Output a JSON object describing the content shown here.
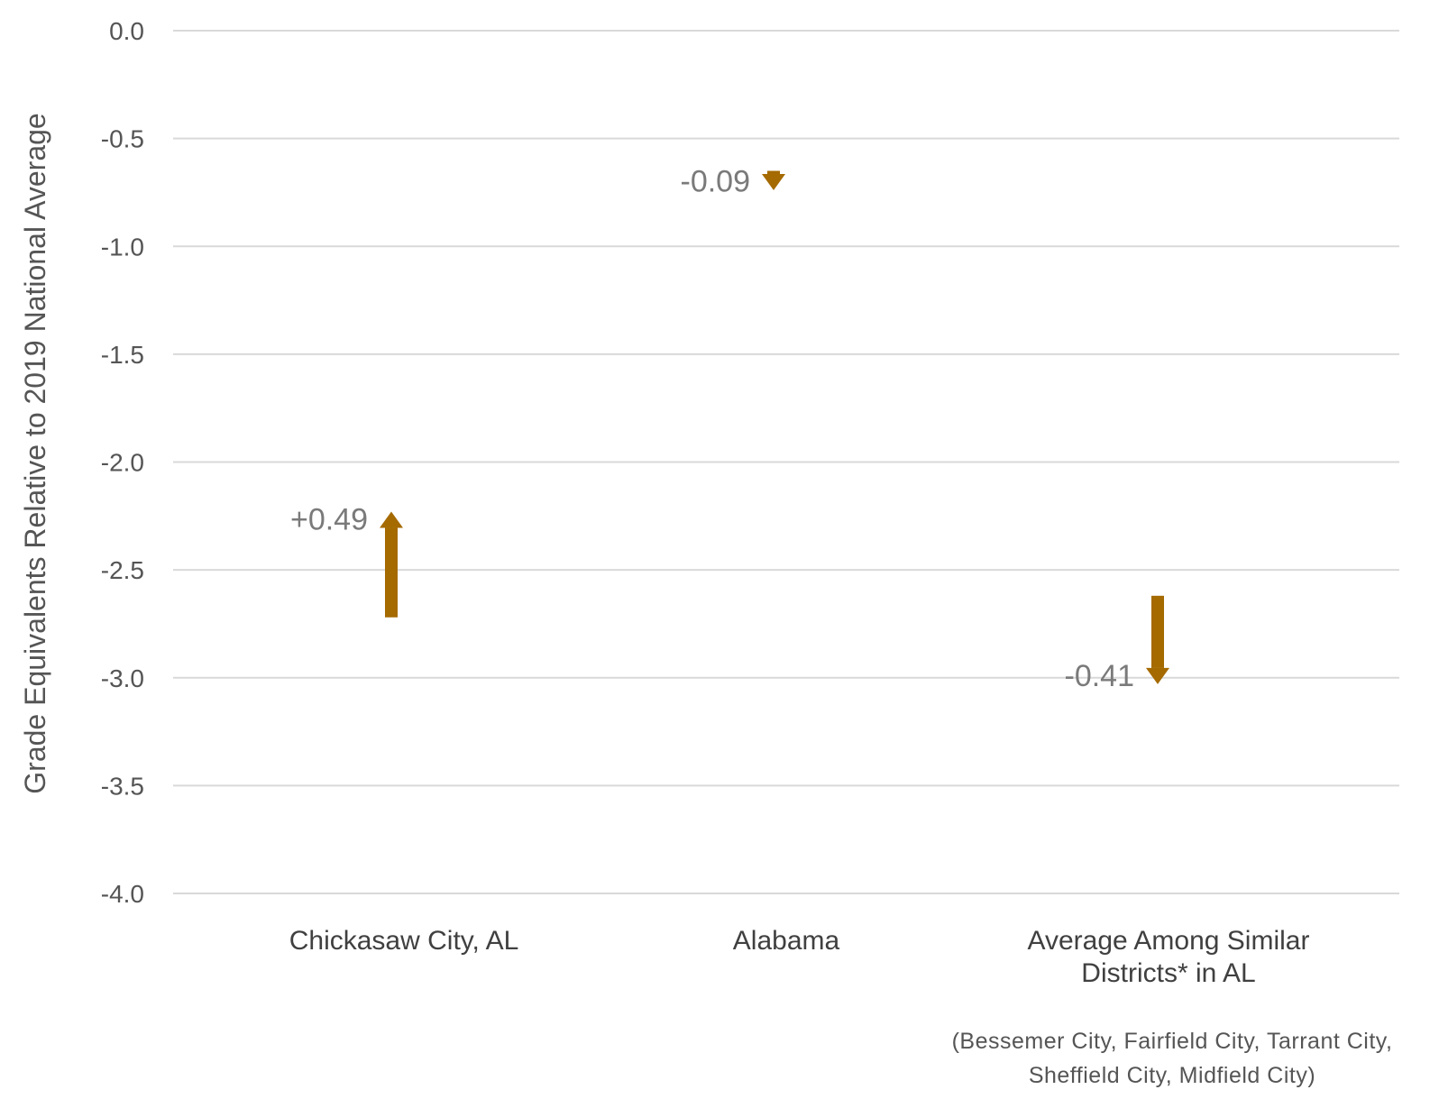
{
  "chart_data": {
    "type": "arrow",
    "title": "",
    "xlabel": "",
    "ylabel": "Grade Equivalents Relative to 2019 National Average",
    "ylim": [
      -4.0,
      0.0
    ],
    "yticks": [
      "0.0",
      "-0.5",
      "-1.0",
      "-1.5",
      "-2.0",
      "-2.5",
      "-3.0",
      "-3.5",
      "-4.0"
    ],
    "ytick_values": [
      0.0,
      -0.5,
      -1.0,
      -1.5,
      -2.0,
      -2.5,
      -3.0,
      -3.5,
      -4.0
    ],
    "grid": true,
    "arrow_color": "#a56a00",
    "categories": [
      {
        "lines": [
          "Chickasaw City, AL"
        ],
        "start": -2.72,
        "end": -2.23,
        "label": "+0.49"
      },
      {
        "lines": [
          "Alabama"
        ],
        "start": -0.65,
        "end": -0.74,
        "label": "-0.09"
      },
      {
        "lines": [
          "Average Among Similar",
          "Districts* in AL"
        ],
        "start": -2.62,
        "end": -3.03,
        "label": "-0.41"
      }
    ],
    "footnote": [
      "(Bessemer City, Fairfield City, Tarrant City,",
      "Sheffield City, Midfield City)"
    ]
  }
}
